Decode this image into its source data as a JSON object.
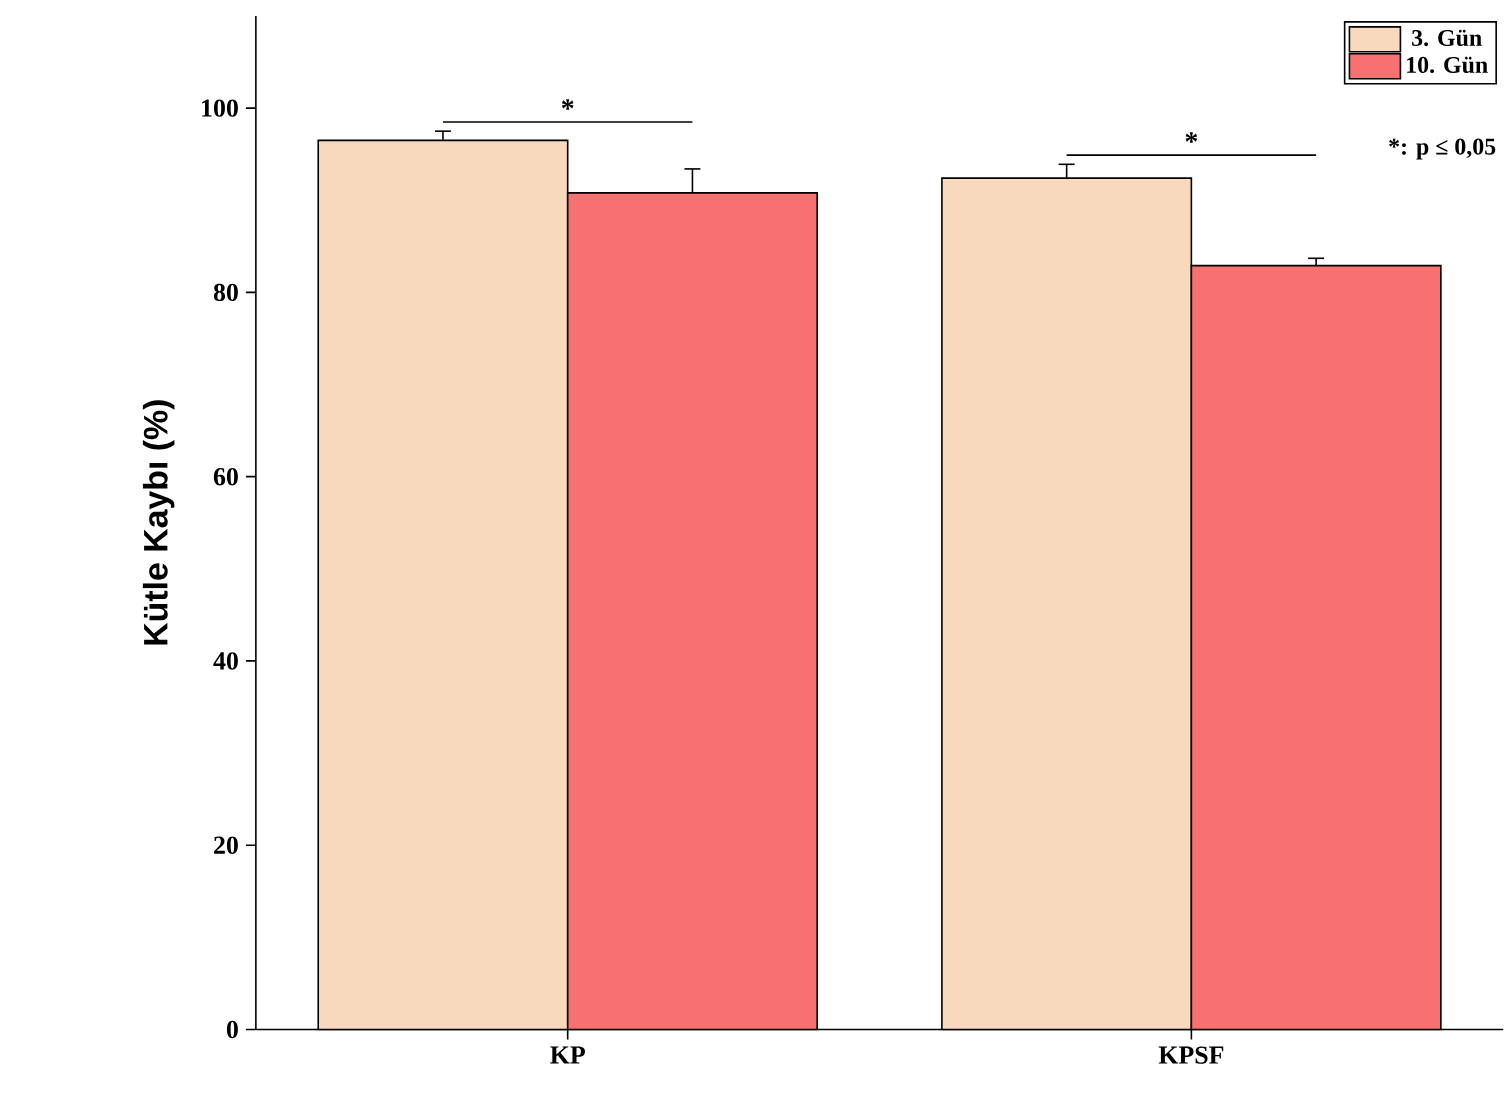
{
  "chart_data": {
    "type": "bar",
    "ylabel": "Kütle Kaybı (%)",
    "categories": [
      "KP",
      "KPSF"
    ],
    "series": [
      {
        "name": "3. Gün",
        "color": "#f9d9bd",
        "values": [
          96.5,
          92.4
        ],
        "errors": [
          1.0,
          1.5
        ]
      },
      {
        "name": "10. Gün",
        "color": "#f87171",
        "values": [
          90.8,
          82.9
        ],
        "errors": [
          2.6,
          0.8
        ]
      }
    ],
    "ylim": [
      0,
      110
    ],
    "yticks": [
      0,
      20,
      40,
      60,
      80,
      100
    ],
    "legend": "top right",
    "grid": false,
    "annotations": [
      "*",
      "*",
      "*: p ≤ 0,05"
    ]
  }
}
